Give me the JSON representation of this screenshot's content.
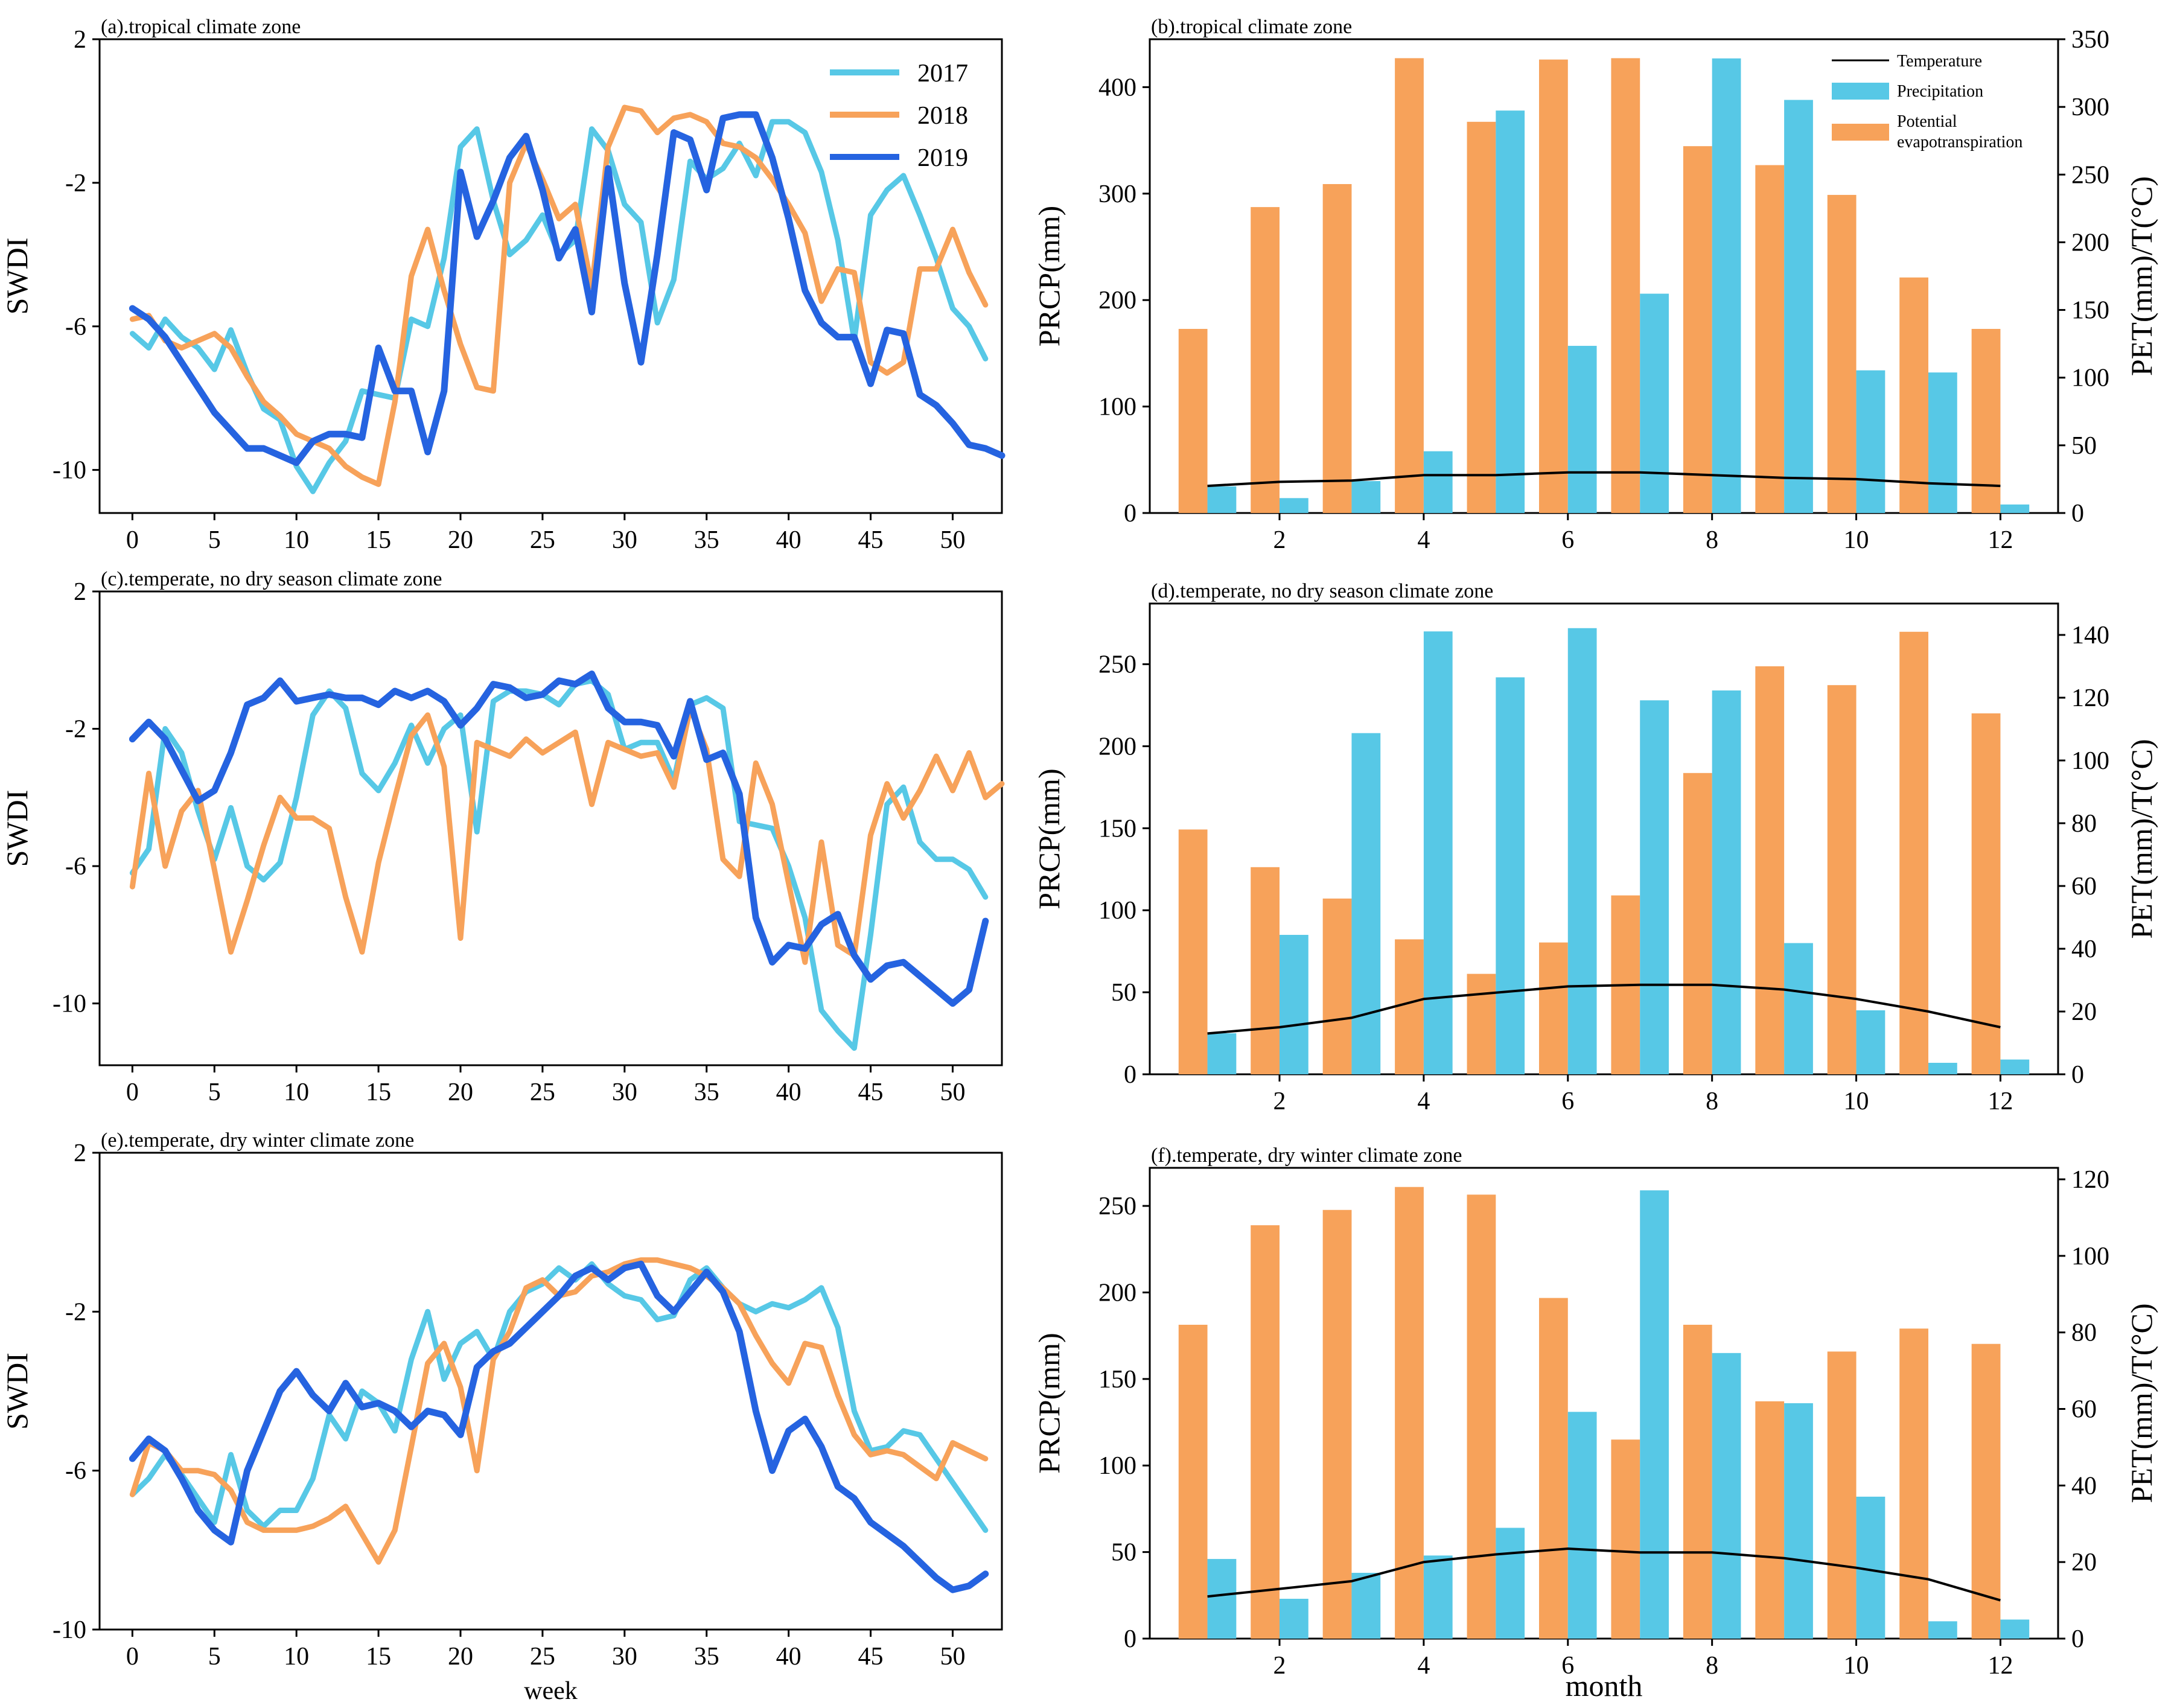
{
  "figure": {
    "x_label_left": "week",
    "x_label_right": "month",
    "colors": {
      "y2017": "#57c8e6",
      "y2018": "#f7a25a",
      "y2019": "#2563e0",
      "temperature": "#000000",
      "precipitation": "#57c8e6",
      "pet": "#f7a25a"
    }
  },
  "chart_data": [
    {
      "id": "a",
      "type": "line",
      "title": "(a).tropical climate zone",
      "xlabel": "",
      "ylabel": "SWDI",
      "xlim": [
        -2,
        53
      ],
      "ylim": [
        -11.2,
        2
      ],
      "xticks": [
        0,
        5,
        10,
        15,
        20,
        25,
        30,
        35,
        40,
        45,
        50
      ],
      "yticks": [
        2,
        -2,
        -6,
        -10
      ],
      "ytick_labels": [
        "2",
        "-2",
        "-6",
        "-10"
      ],
      "legend": [
        "2017",
        "2018",
        "2019"
      ],
      "series": [
        {
          "name": "2017",
          "values": [
            -6.2,
            -6.6,
            -5.8,
            -6.3,
            -6.6,
            -7.2,
            -6.1,
            -7.3,
            -8.3,
            -8.6,
            -9.9,
            -10.6,
            -9.8,
            -9.2,
            -7.8,
            -7.9,
            -8.0,
            -5.8,
            -6.0,
            -4.1,
            -1.0,
            -0.5,
            -2.5,
            -4.0,
            -3.6,
            -2.9,
            -4.0,
            -3.6,
            -0.5,
            -1.1,
            -2.6,
            -3.1,
            -5.9,
            -4.7,
            -1.4,
            -1.9,
            -1.6,
            -0.9,
            -1.8,
            -0.3,
            -0.3,
            -0.6,
            -1.7,
            -3.6,
            -6.4,
            -2.9,
            -2.2,
            -1.8,
            -2.9,
            -4.1,
            -5.5,
            -6.0,
            -6.9
          ]
        },
        {
          "name": "2018",
          "values": [
            -5.8,
            -5.7,
            -6.4,
            -6.6,
            -6.4,
            -6.2,
            -6.6,
            -7.4,
            -8.1,
            -8.5,
            -9.0,
            -9.2,
            -9.4,
            -9.9,
            -10.2,
            -10.4,
            -8.1,
            -4.6,
            -3.3,
            -5.0,
            -6.5,
            -7.7,
            -7.8,
            -2.0,
            -0.9,
            -1.9,
            -3.0,
            -2.6,
            -4.9,
            -1.0,
            0.1,
            0.0,
            -0.6,
            -0.2,
            -0.1,
            -0.3,
            -0.9,
            -1.0,
            -1.3,
            -1.9,
            -2.6,
            -3.4,
            -5.3,
            -4.4,
            -4.5,
            -7.0,
            -7.3,
            -7.0,
            -4.4,
            -4.4,
            -3.3,
            -4.5,
            -5.4
          ]
        },
        {
          "name": "2019",
          "values": [
            -5.5,
            -5.8,
            -6.3,
            -7.0,
            -7.7,
            -8.4,
            -8.9,
            -9.4,
            -9.4,
            -9.6,
            -9.8,
            -9.2,
            -9.0,
            -9.0,
            -9.1,
            -6.6,
            -7.8,
            -7.8,
            -9.5,
            -7.8,
            -1.7,
            -3.5,
            -2.5,
            -1.3,
            -0.7,
            -2.2,
            -4.1,
            -3.3,
            -5.6,
            -1.6,
            -4.8,
            -7.0,
            -4.0,
            -0.6,
            -0.8,
            -2.2,
            -0.2,
            -0.1,
            -0.1,
            -1.3,
            -3.0,
            -5.0,
            -5.9,
            -6.3,
            -6.3,
            -7.6,
            -6.1,
            -6.2,
            -7.9,
            -8.2,
            -8.7,
            -9.3,
            -9.4,
            -9.6
          ]
        }
      ]
    },
    {
      "id": "b",
      "type": "bar",
      "title": "(b).tropical climate zone",
      "xlabel": "",
      "ylabel": "PRCP(mm)",
      "y2label": "PET(mm)/T(°C)",
      "xlim": [
        0.2,
        12.8
      ],
      "ylim": [
        0,
        445
      ],
      "y2lim": [
        0,
        350
      ],
      "xticks": [
        2,
        4,
        6,
        8,
        10,
        12
      ],
      "yticks": [
        0,
        100,
        200,
        300,
        400
      ],
      "y2ticks": [
        0,
        50,
        100,
        150,
        200,
        250,
        300,
        350
      ],
      "months": [
        1,
        2,
        3,
        4,
        5,
        6,
        7,
        8,
        9,
        10,
        11,
        12
      ],
      "legend": [
        "Temperature",
        "Precipitation",
        "Potential",
        "evapotranspiration"
      ],
      "series": [
        {
          "name": "Precipitation",
          "axis": "left",
          "values": [
            25,
            14,
            30,
            58,
            378,
            157,
            206,
            427,
            388,
            134,
            132,
            8
          ]
        },
        {
          "name": "Potential evapotranspiration",
          "axis": "right",
          "values": [
            136,
            226,
            243,
            336,
            289,
            335,
            336,
            271,
            257,
            235,
            174,
            136
          ]
        },
        {
          "name": "Temperature",
          "axis": "right",
          "values": [
            20,
            23,
            24,
            28,
            28,
            30,
            30,
            28,
            26,
            25,
            22,
            20
          ]
        }
      ]
    },
    {
      "id": "c",
      "type": "line",
      "title": "(c).temperate, no dry season climate zone",
      "xlabel": "",
      "ylabel": "SWDI",
      "xlim": [
        -2,
        53
      ],
      "ylim": [
        -11.8,
        2
      ],
      "xticks": [
        0,
        5,
        10,
        15,
        20,
        25,
        30,
        35,
        40,
        45,
        50
      ],
      "yticks": [
        2,
        -2,
        -6,
        -10
      ],
      "ytick_labels": [
        "2",
        "-2",
        "-6",
        "-10"
      ],
      "series": [
        {
          "name": "2017",
          "values": [
            -6.2,
            -5.5,
            -2.0,
            -2.7,
            -4.4,
            -5.8,
            -4.3,
            -6.0,
            -6.4,
            -5.9,
            -4.0,
            -1.6,
            -0.9,
            -1.4,
            -3.3,
            -3.8,
            -3.0,
            -1.9,
            -3.0,
            -2.0,
            -1.6,
            -5.0,
            -1.2,
            -0.9,
            -0.9,
            -1.0,
            -1.3,
            -0.7,
            -0.6,
            -1.0,
            -2.6,
            -2.4,
            -2.4,
            -3.5,
            -1.3,
            -1.1,
            -1.4,
            -4.7,
            -4.8,
            -4.9,
            -6.0,
            -7.5,
            -10.2,
            -10.8,
            -11.3,
            -8.0,
            -4.2,
            -3.7,
            -5.3,
            -5.8,
            -5.8,
            -6.1,
            -6.9
          ]
        },
        {
          "name": "2018",
          "values": [
            -6.6,
            -3.3,
            -6.0,
            -4.4,
            -3.8,
            -6.1,
            -8.5,
            -7.0,
            -5.4,
            -4.0,
            -4.6,
            -4.6,
            -4.9,
            -6.9,
            -8.5,
            -5.9,
            -4.0,
            -2.2,
            -1.6,
            -3.1,
            -8.1,
            -2.4,
            -2.6,
            -2.8,
            -2.3,
            -2.7,
            -2.4,
            -2.1,
            -4.2,
            -2.4,
            -2.6,
            -2.8,
            -2.7,
            -3.7,
            -1.4,
            -2.6,
            -5.8,
            -6.3,
            -3.0,
            -4.2,
            -6.5,
            -8.8,
            -5.3,
            -8.3,
            -8.6,
            -5.1,
            -3.6,
            -4.6,
            -3.8,
            -2.8,
            -3.8,
            -2.7,
            -4.0,
            -3.6
          ]
        },
        {
          "name": "2019",
          "values": [
            -2.3,
            -1.8,
            -2.3,
            -3.2,
            -4.1,
            -3.8,
            -2.7,
            -1.3,
            -1.1,
            -0.6,
            -1.2,
            -1.1,
            -1.0,
            -1.1,
            -1.1,
            -1.3,
            -0.9,
            -1.1,
            -0.9,
            -1.2,
            -1.9,
            -1.4,
            -0.7,
            -0.8,
            -1.1,
            -1.0,
            -0.6,
            -0.7,
            -0.4,
            -1.4,
            -1.8,
            -1.8,
            -1.9,
            -2.8,
            -1.2,
            -2.9,
            -2.7,
            -3.9,
            -7.5,
            -8.8,
            -8.3,
            -8.4,
            -7.7,
            -7.4,
            -8.6,
            -9.3,
            -8.9,
            -8.8,
            -9.2,
            -9.6,
            -10.0,
            -9.6,
            -7.6
          ]
        }
      ]
    },
    {
      "id": "d",
      "type": "bar",
      "title": "(d).temperate, no dry season climate zone",
      "xlabel": "",
      "ylabel": "PRCP(mm)",
      "y2label": "PET(mm)/T(°C)",
      "xlim": [
        0.2,
        12.8
      ],
      "ylim": [
        0,
        287
      ],
      "y2lim": [
        0,
        150
      ],
      "xticks": [
        2,
        4,
        6,
        8,
        10,
        12
      ],
      "yticks": [
        0,
        50,
        100,
        150,
        200,
        250
      ],
      "y2ticks": [
        0,
        20,
        40,
        60,
        80,
        100,
        120,
        140
      ],
      "months": [
        1,
        2,
        3,
        4,
        5,
        6,
        7,
        8,
        9,
        10,
        11,
        12
      ],
      "series": [
        {
          "name": "Precipitation",
          "axis": "left",
          "values": [
            25,
            85,
            208,
            270,
            242,
            272,
            228,
            234,
            80,
            39,
            7,
            9
          ]
        },
        {
          "name": "Potential evapotranspiration",
          "axis": "right",
          "values": [
            78,
            66,
            56,
            43,
            32,
            42,
            57,
            96,
            130,
            124,
            141,
            115
          ]
        },
        {
          "name": "Temperature",
          "axis": "right",
          "values": [
            13,
            15,
            18,
            24,
            26,
            28,
            28.5,
            28.5,
            27,
            24,
            20,
            15
          ]
        }
      ]
    },
    {
      "id": "e",
      "type": "line",
      "title": "(e).temperate, dry winter climate zone",
      "xlabel": "week",
      "ylabel": "SWDI",
      "xlim": [
        -2,
        53
      ],
      "ylim": [
        -10,
        2
      ],
      "xticks": [
        0,
        5,
        10,
        15,
        20,
        25,
        30,
        35,
        40,
        45,
        50
      ],
      "yticks": [
        2,
        -2,
        -6,
        -10
      ],
      "ytick_labels": [
        "2",
        "-2",
        "-6",
        "-10"
      ],
      "series": [
        {
          "name": "2017",
          "values": [
            -6.6,
            -6.2,
            -5.6,
            -6.1,
            -6.7,
            -7.3,
            -5.6,
            -7.0,
            -7.4,
            -7.0,
            -7.0,
            -6.2,
            -4.6,
            -5.2,
            -4.0,
            -4.3,
            -5.0,
            -3.2,
            -2.0,
            -3.7,
            -2.8,
            -2.5,
            -3.2,
            -2.0,
            -1.5,
            -1.3,
            -0.9,
            -1.2,
            -0.8,
            -1.3,
            -1.6,
            -1.7,
            -2.2,
            -2.1,
            -1.2,
            -0.9,
            -1.4,
            -1.8,
            -2.0,
            -1.8,
            -1.9,
            -1.7,
            -1.4,
            -2.4,
            -4.5,
            -5.5,
            -5.4,
            -5.0,
            -5.1,
            -5.7,
            -6.3,
            -6.9,
            -7.5
          ]
        },
        {
          "name": "2018",
          "values": [
            -6.6,
            -5.3,
            -5.5,
            -6.0,
            -6.0,
            -6.1,
            -6.5,
            -7.3,
            -7.5,
            -7.5,
            -7.5,
            -7.4,
            -7.2,
            -6.9,
            -7.6,
            -8.3,
            -7.5,
            -5.4,
            -3.3,
            -2.8,
            -3.9,
            -6.0,
            -3.2,
            -2.5,
            -1.4,
            -1.2,
            -1.6,
            -1.5,
            -1.1,
            -1.0,
            -0.8,
            -0.7,
            -0.7,
            -0.8,
            -0.9,
            -1.1,
            -1.4,
            -1.8,
            -2.6,
            -3.3,
            -3.8,
            -2.8,
            -2.9,
            -4.1,
            -5.1,
            -5.6,
            -5.5,
            -5.6,
            -5.9,
            -6.2,
            -5.3,
            -5.5,
            -5.7
          ]
        },
        {
          "name": "2019",
          "values": [
            -5.7,
            -5.2,
            -5.5,
            -6.2,
            -7.0,
            -7.5,
            -7.8,
            -6.0,
            -5.0,
            -4.0,
            -3.5,
            -4.1,
            -4.5,
            -3.8,
            -4.4,
            -4.3,
            -4.5,
            -4.9,
            -4.5,
            -4.6,
            -5.1,
            -3.4,
            -3.0,
            -2.8,
            -2.4,
            -2.0,
            -1.6,
            -1.1,
            -0.9,
            -1.2,
            -0.9,
            -0.8,
            -1.6,
            -2.0,
            -1.5,
            -1.0,
            -1.5,
            -2.5,
            -4.5,
            -6.0,
            -5.0,
            -4.7,
            -5.4,
            -6.4,
            -6.7,
            -7.3,
            -7.6,
            -7.9,
            -8.3,
            -8.7,
            -9.0,
            -8.9,
            -8.6
          ]
        }
      ]
    },
    {
      "id": "f",
      "type": "bar",
      "title": "(f).temperate, dry winter climate zone",
      "xlabel": "month",
      "ylabel": "PRCP(mm)",
      "y2label": "PET(mm)/T(°C)",
      "xlim": [
        0.2,
        12.8
      ],
      "ylim": [
        0,
        272
      ],
      "y2lim": [
        0,
        123
      ],
      "xticks": [
        2,
        4,
        6,
        8,
        10,
        12
      ],
      "yticks": [
        0,
        50,
        100,
        150,
        200,
        250
      ],
      "y2ticks": [
        0,
        20,
        40,
        60,
        80,
        100,
        120
      ],
      "months": [
        1,
        2,
        3,
        4,
        5,
        6,
        7,
        8,
        9,
        10,
        11,
        12
      ],
      "series": [
        {
          "name": "Precipitation",
          "axis": "left",
          "values": [
            46,
            23,
            38,
            48,
            64,
            131,
            259,
            165,
            136,
            82,
            10,
            11
          ]
        },
        {
          "name": "Potential evapotranspiration",
          "axis": "right",
          "values": [
            82,
            108,
            112,
            118,
            116,
            89,
            52,
            82,
            62,
            75,
            81,
            77
          ]
        },
        {
          "name": "Temperature",
          "axis": "right",
          "values": [
            11,
            13,
            15,
            20,
            22,
            23.5,
            22.5,
            22.5,
            21,
            18.5,
            15.5,
            10
          ]
        }
      ]
    }
  ]
}
